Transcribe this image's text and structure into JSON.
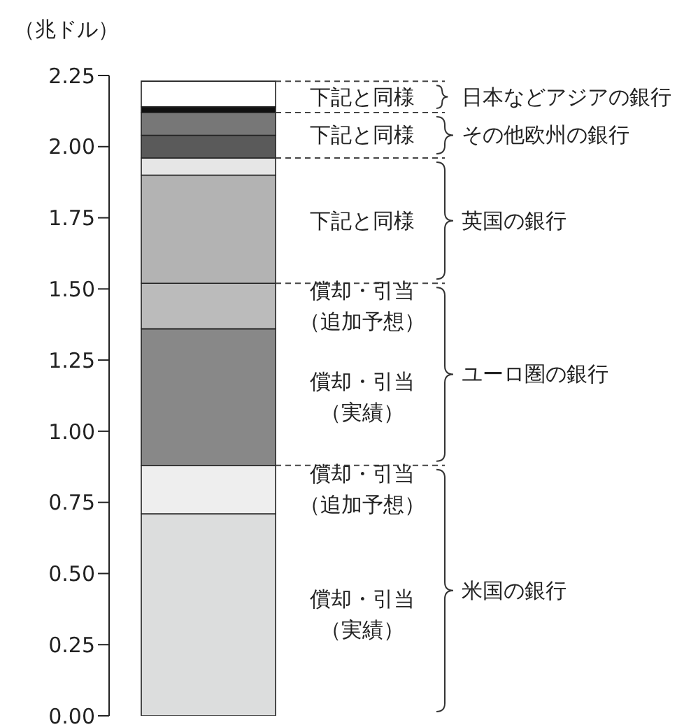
{
  "chart_data": {
    "type": "bar",
    "stacked": true,
    "ylabel": "（兆ドル）",
    "categories": [
      null
    ],
    "ylim": [
      0,
      2.25
    ],
    "yticks": [
      {
        "value": 0,
        "label": "0.00"
      },
      {
        "value": 0.25,
        "label": "0.25"
      },
      {
        "value": 0.5,
        "label": "0.50"
      },
      {
        "value": 0.75,
        "label": "0.75"
      },
      {
        "value": 1,
        "label": "1.00"
      },
      {
        "value": 1.25,
        "label": "1.25"
      },
      {
        "value": 1.5,
        "label": "1.50"
      },
      {
        "value": 1.75,
        "label": "1.75"
      },
      {
        "value": 2,
        "label": "2.00"
      },
      {
        "value": 2.25,
        "label": "2.25"
      }
    ],
    "series": [
      {
        "color": "#dcdddd",
        "values": [
          0.71
        ]
      },
      {
        "color": "#eeeeee",
        "values": [
          0.17
        ]
      },
      {
        "color": "#888888",
        "values": [
          0.48
        ]
      },
      {
        "color": "#bbbbbb",
        "values": [
          0.16
        ]
      },
      {
        "color": "#b3b3b3",
        "values": [
          0.38
        ]
      },
      {
        "color": "#e6e6e6",
        "values": [
          0.06
        ]
      },
      {
        "color": "#5a5a5a",
        "values": [
          0.08
        ]
      },
      {
        "color": "#777777",
        "values": [
          0.08
        ]
      },
      {
        "color": "#111111",
        "values": [
          0.02
        ]
      },
      {
        "color": "#ffffff",
        "values": [
          0.09
        ]
      }
    ],
    "annotations": [
      "償却・引当（実績）",
      "償却・引当（追加予想）",
      "償却・引当（実績）",
      "償却・引当（追加予想）",
      "下記と同様",
      "下記と同様",
      "下記と同様",
      "米国の銀行",
      "ユーロ圏の銀行",
      "英国の銀行",
      "その他欧州の銀行",
      "日本などアジアの銀行"
    ]
  }
}
